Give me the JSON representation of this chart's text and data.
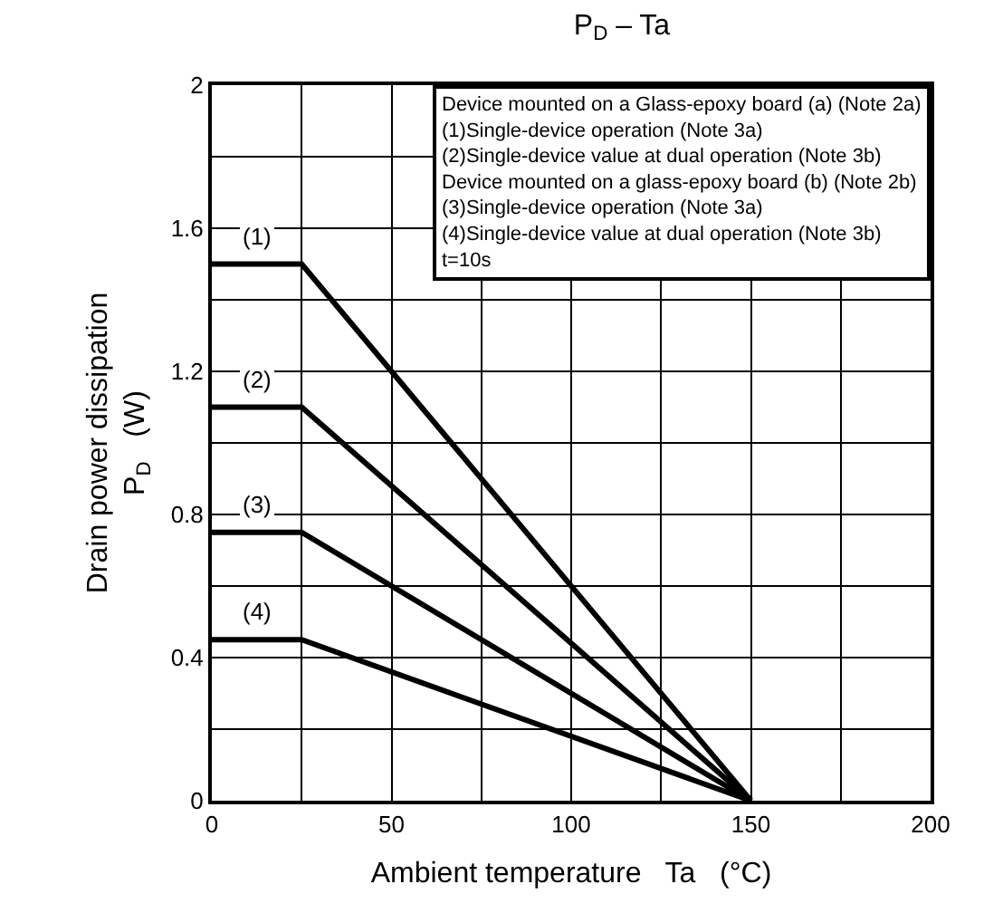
{
  "chart_data": {
    "type": "line",
    "title": "P$_{D}$ – Ta",
    "xlabel": "Ambient temperature   Ta   (°C)",
    "ylabel": "Drain power dissipation\nP$_{D}$   (W)",
    "x": [
      0,
      25,
      150
    ],
    "series": [
      {
        "name": "(1)",
        "color": "#000000",
        "values": [
          1.5,
          1.5,
          0
        ]
      },
      {
        "name": "(2)",
        "color": "#000000",
        "values": [
          1.1,
          1.1,
          0
        ]
      },
      {
        "name": "(3)",
        "color": "#000000",
        "values": [
          0.75,
          0.75,
          0
        ]
      },
      {
        "name": "(4)",
        "color": "#000000",
        "values": [
          0.45,
          0.45,
          0
        ]
      }
    ],
    "annotations": [
      "Device mounted on a Glass-epoxy board (a) (Note 2a)",
      "(1)Single-device operation (Note 3a)",
      "(2)Single-device value at dual operation (Note 3b)",
      "Device mounted on a glass-epoxy board (b) (Note 2b)",
      "(3)Single-device operation (Note 3a)",
      "(4)Single-device value at dual operation (Note 3b)",
      "t=10s"
    ],
    "xlim": [
      0,
      200
    ],
    "xticks": [
      0,
      {
        "value": 25,
        "label": null
      },
      50,
      {
        "value": 75,
        "label": null
      },
      100,
      {
        "value": 125,
        "label": null
      },
      150,
      {
        "value": 175,
        "label": null
      },
      200
    ],
    "ylim": [
      0,
      2
    ],
    "yticks": [
      0,
      {
        "value": 0.2,
        "label": null
      },
      0.4,
      {
        "value": 0.6,
        "label": null
      },
      0.8,
      {
        "value": 1.0,
        "label": null
      },
      1.2,
      {
        "value": 1.4,
        "label": null
      },
      1.6,
      {
        "value": 1.8,
        "label": null
      },
      2
    ],
    "grid": true,
    "legend": false,
    "marker": "none",
    "line_style": "solid"
  }
}
